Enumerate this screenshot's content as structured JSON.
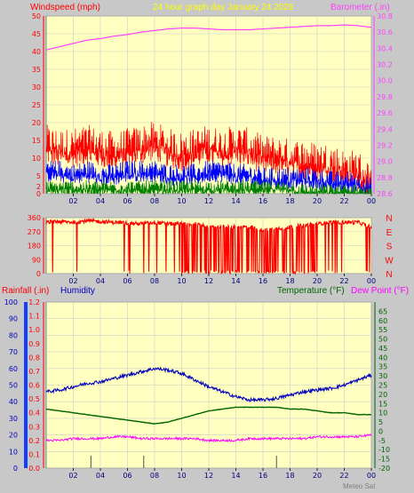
{
  "colors": {
    "background": "#c8c8c8",
    "plot_bg": "#ffffc0",
    "grid": "#cccccc",
    "wind": "#ff0000",
    "wind_avg": "#0000ff",
    "wind_low": "#008000",
    "barometer": "#ff40ff",
    "direction": "#ff0000",
    "humidity": "#0000c0",
    "temperature": "#006400",
    "dew_point": "#ff00ff",
    "rain_axis": "#ff0000",
    "hum_axis": "#0000c0",
    "hum_bar": "#1040ff",
    "title": "#ffff00",
    "footer": "#808080"
  },
  "header": {
    "windspeed_label": "Windspeed (mph)",
    "title": "24 hour graph day   January 24 2026",
    "barometer_label": "Barometer (.in)"
  },
  "bottom_header": {
    "rainfall_label": "Rainfall (.in)",
    "humidity_label": "Humidity",
    "temperature_label": "Temperature (°F)",
    "dewpoint_label": "Dew Point (°F)"
  },
  "direction_labels": [
    "N",
    "W",
    "S",
    "E",
    "N"
  ],
  "footer": "Meteo Sat",
  "chart_data": [
    {
      "type": "line",
      "title": "24 hour graph day   January 24 2026",
      "xlabel": "",
      "x_ticks": [
        "02",
        "04",
        "06",
        "08",
        "10",
        "12",
        "14",
        "16",
        "18",
        "20",
        "22",
        "00"
      ],
      "ylabel": "Windspeed (mph)",
      "ylim": [
        0,
        50
      ],
      "y_ticks": [
        0,
        2,
        5,
        10,
        15,
        20,
        25,
        30,
        35,
        40,
        45,
        50
      ],
      "y2label": "Barometer (.in)",
      "y2lim": [
        28.6,
        30.8
      ],
      "y2_ticks": [
        28.6,
        28.8,
        29.0,
        29.2,
        29.4,
        29.6,
        29.8,
        30.0,
        30.2,
        30.4,
        30.6,
        30.8
      ],
      "grid": true,
      "hours": [
        0,
        1,
        2,
        3,
        4,
        5,
        6,
        7,
        8,
        9,
        10,
        11,
        12,
        13,
        14,
        15,
        16,
        17,
        18,
        19,
        20,
        21,
        22,
        23,
        24
      ],
      "series": [
        {
          "axis": "left",
          "values": [
            15,
            14,
            14,
            15,
            14,
            13,
            14,
            15,
            16,
            14,
            13,
            14,
            15,
            14,
            15,
            14,
            12,
            12,
            11,
            11,
            10,
            10,
            8,
            8,
            4
          ]
        },
        {
          "axis": "left",
          "values": [
            7,
            7,
            6,
            7,
            6,
            6,
            7,
            7,
            7,
            6,
            6,
            6,
            7,
            7,
            6,
            6,
            5,
            5,
            5,
            5,
            5,
            4,
            4,
            4,
            2
          ]
        },
        {
          "axis": "left",
          "values": [
            2,
            2,
            2,
            2,
            2,
            2,
            2,
            2,
            2,
            2,
            2,
            2,
            2,
            2,
            2,
            2,
            2,
            2,
            2,
            1,
            1,
            1,
            1,
            1,
            0
          ]
        },
        {
          "axis": "right",
          "values": [
            30.38,
            30.42,
            30.46,
            30.5,
            30.52,
            30.55,
            30.57,
            30.6,
            30.62,
            30.64,
            30.65,
            30.65,
            30.64,
            30.63,
            30.63,
            30.63,
            30.64,
            30.65,
            30.66,
            30.67,
            30.68,
            30.68,
            30.69,
            30.68,
            30.66
          ]
        }
      ]
    },
    {
      "type": "line",
      "ylabel": "",
      "ylim": [
        0,
        360
      ],
      "y_ticks": [
        0,
        90,
        180,
        270,
        360
      ],
      "y2_labels": [
        "N",
        "W",
        "S",
        "E",
        "N"
      ],
      "x_ticks": [
        "02",
        "04",
        "06",
        "08",
        "10",
        "12",
        "14",
        "16",
        "18",
        "20",
        "22",
        "00"
      ],
      "hours": [
        0,
        1,
        2,
        3,
        4,
        5,
        6,
        7,
        8,
        9,
        10,
        11,
        12,
        13,
        14,
        15,
        16,
        17,
        18,
        19,
        20,
        21,
        22,
        23,
        24
      ],
      "series": [
        {
          "values": [
            330,
            335,
            330,
            340,
            335,
            330,
            325,
            320,
            330,
            320,
            320,
            320,
            300,
            300,
            300,
            300,
            280,
            290,
            300,
            310,
            320,
            330,
            330,
            330,
            300
          ]
        }
      ]
    },
    {
      "type": "line",
      "title": "",
      "x_ticks": [
        "02",
        "04",
        "06",
        "08",
        "10",
        "12",
        "14",
        "16",
        "18",
        "20",
        "22",
        "00"
      ],
      "ylabel": "Rainfall (.in)",
      "ylim": [
        0,
        1.2
      ],
      "y_ticks": [
        0,
        0.1,
        0.2,
        0.3,
        0.4,
        0.5,
        0.6,
        0.7,
        0.8,
        0.9,
        1.0,
        1.1,
        1.2
      ],
      "humidity_ylim": [
        0,
        100
      ],
      "humidity_ticks": [
        0,
        10,
        20,
        30,
        40,
        50,
        60,
        70,
        80,
        90,
        100
      ],
      "y2label": "Temperature (°F)",
      "y2lim": [
        -20,
        70
      ],
      "y2_ticks": [
        -20,
        -15,
        -10,
        -5,
        0,
        5,
        10,
        15,
        20,
        25,
        30,
        35,
        40,
        45,
        50,
        55,
        60,
        65
      ],
      "grid": true,
      "hours": [
        0,
        1,
        2,
        3,
        4,
        5,
        6,
        7,
        8,
        9,
        10,
        11,
        12,
        13,
        14,
        15,
        16,
        17,
        18,
        19,
        20,
        21,
        22,
        23,
        24
      ],
      "series": [
        {
          "name": "Humidity",
          "axis": "humidity",
          "values": [
            46,
            47,
            49,
            51,
            52,
            54,
            56,
            58,
            60,
            59,
            57,
            53,
            49,
            46,
            43,
            41,
            41,
            42,
            44,
            46,
            47,
            48,
            50,
            53,
            56
          ]
        },
        {
          "name": "Temperature (°F)",
          "axis": "right",
          "values": [
            12,
            11,
            10,
            9,
            8,
            7,
            6,
            5,
            4,
            5,
            7,
            9,
            11,
            12,
            13,
            13,
            13,
            13,
            12,
            12,
            11,
            10,
            10,
            9,
            9
          ]
        },
        {
          "name": "Dew Point (°F)",
          "axis": "right",
          "values": [
            -5,
            -5,
            -4,
            -4,
            -4,
            -3,
            -3,
            -4,
            -4,
            -4,
            -4,
            -4,
            -5,
            -5,
            -5,
            -4,
            -4,
            -4,
            -4,
            -4,
            -3,
            -3,
            -3,
            -3,
            -2
          ]
        }
      ]
    }
  ]
}
